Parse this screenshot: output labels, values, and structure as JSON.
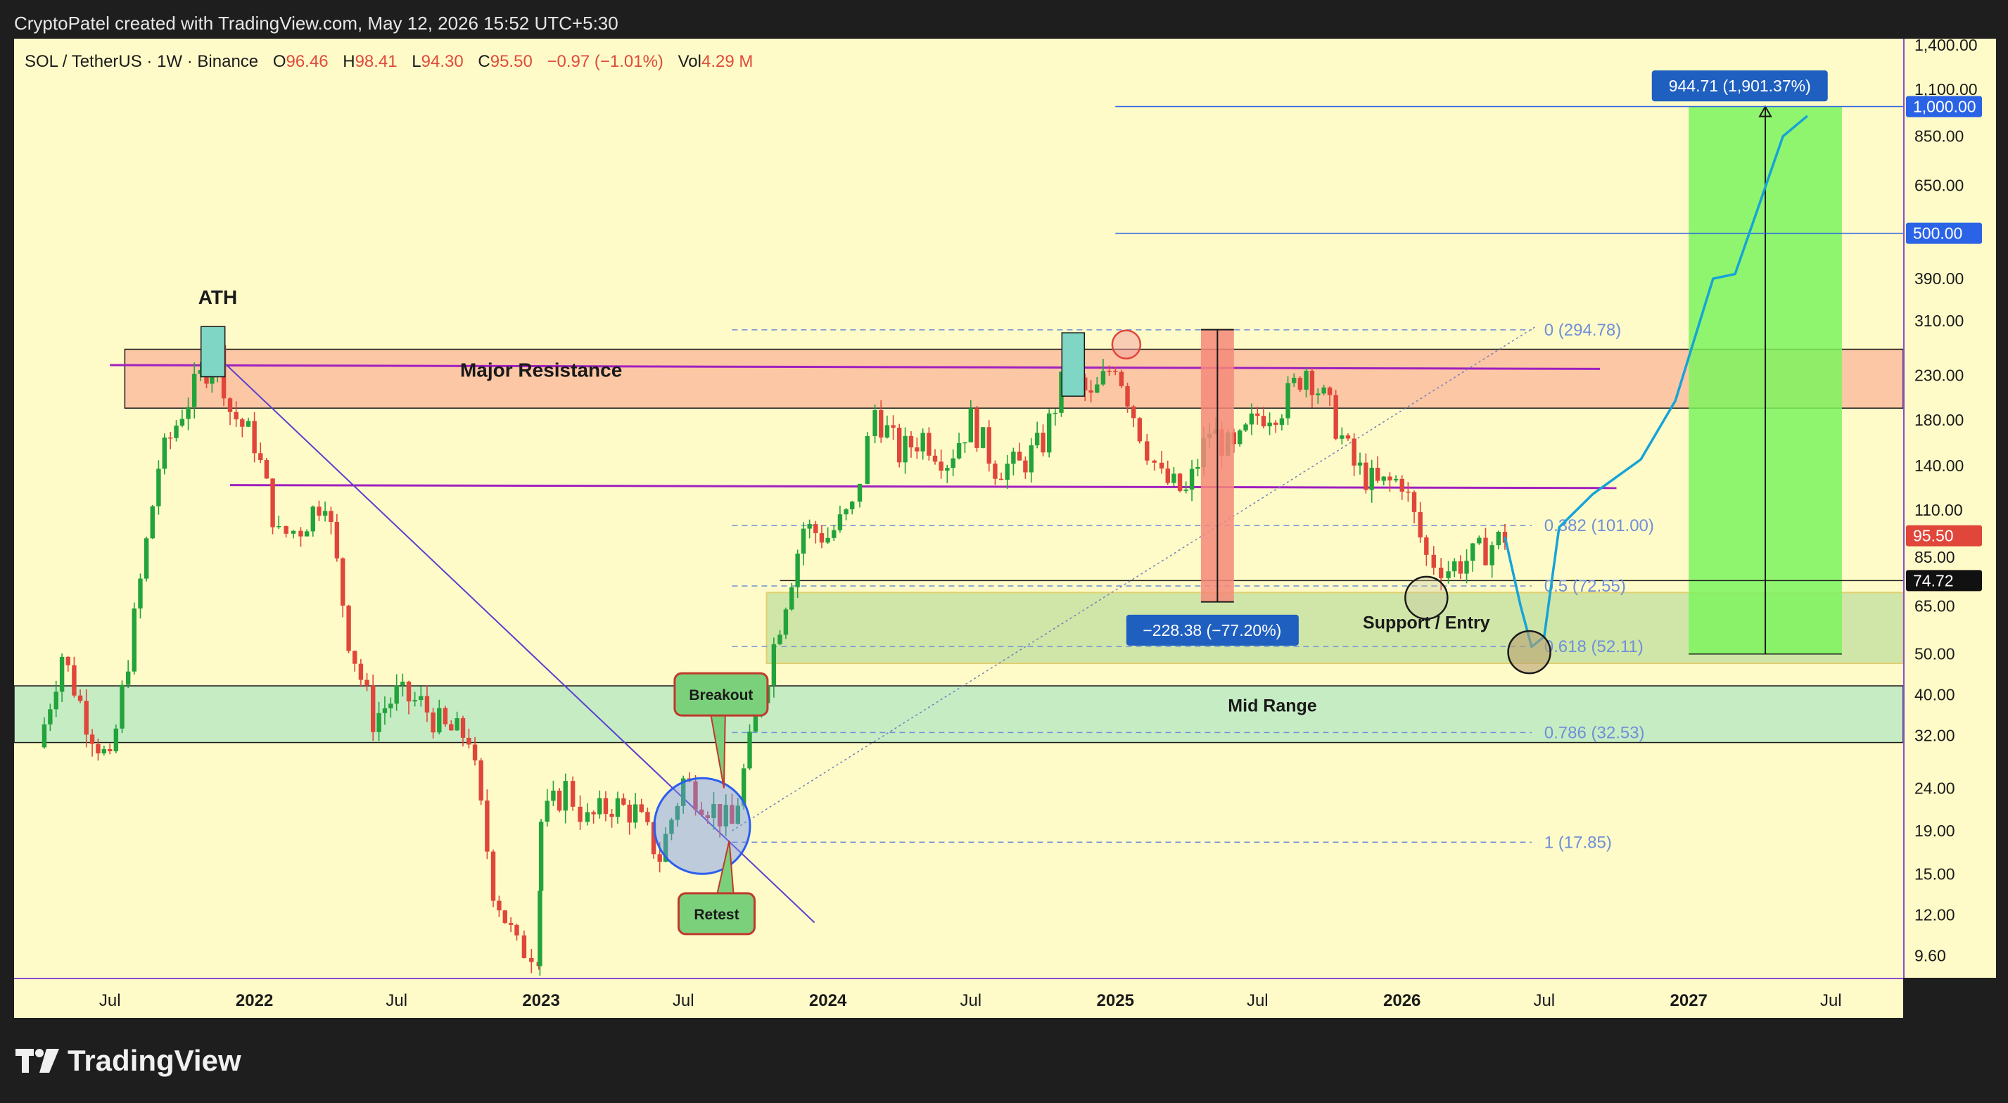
{
  "header": {
    "text": "CryptoPatel created with TradingView.com, May 12, 2026 15:52 UTC+5:30"
  },
  "legend": {
    "symbol": "SOL / TetherUS · 1W · Binance",
    "open_label": "O",
    "open": "96.46",
    "high_label": "H",
    "high": "98.41",
    "low_label": "L",
    "low": "94.30",
    "close_label": "C",
    "close": "95.50",
    "change": "−0.97 (−1.01%)",
    "vol_label": "Vol",
    "vol": "4.29 M"
  },
  "brand": {
    "name": "TradingView",
    "icon": "tradingview-logo-icon"
  },
  "colors": {
    "background": "#fffbc8",
    "up": "#22a33b",
    "down": "#e0463a",
    "projection": "#16a3d8",
    "resistance_line": "#a020c0",
    "fib": "#6f8fd8"
  },
  "chart_data": {
    "type": "candlestick",
    "title": "",
    "scale": "log",
    "ylim": [
      8.5,
      1450
    ],
    "y_ticks": [
      "1,400.00",
      "1,100.00",
      "850.00",
      "650.00",
      "500.00",
      "390.00",
      "310.00",
      "230.00",
      "180.00",
      "140.00",
      "110.00",
      "85.00",
      "65.00",
      "50.00",
      "40.00",
      "32.00",
      "24.00",
      "19.00",
      "15.00",
      "12.00",
      "9.60"
    ],
    "x_ticks": [
      "Jul",
      "2022",
      "Jul",
      "2023",
      "Jul",
      "2024",
      "Jul",
      "2025",
      "Jul",
      "2026",
      "Jul",
      "2027",
      "Jul"
    ],
    "price_badges": [
      {
        "label": "1,000.00",
        "value": 1000,
        "color": "#2b63e6"
      },
      {
        "label": "500.00",
        "value": 500,
        "color": "#2b63e6"
      },
      {
        "label": "95.50",
        "value": 95.5,
        "color": "#e0463a"
      },
      {
        "label": "74.72",
        "value": 74.72,
        "color": "#111111"
      }
    ],
    "weekly_path": [
      [
        "2021-04",
        30
      ],
      [
        "2021-05",
        50
      ],
      [
        "2021-06",
        35
      ],
      [
        "2021-07",
        27
      ],
      [
        "2021-08",
        60
      ],
      [
        "2021-09",
        140
      ],
      [
        "2021-10",
        190
      ],
      [
        "2021-11",
        240
      ],
      [
        "2021-11-15",
        260
      ],
      [
        "2021-12",
        190
      ],
      [
        "2022-01",
        160
      ],
      [
        "2022-02",
        95
      ],
      [
        "2022-03",
        100
      ],
      [
        "2022-04",
        120
      ],
      [
        "2022-05",
        55
      ],
      [
        "2022-06",
        35
      ],
      [
        "2022-07",
        40
      ],
      [
        "2022-08",
        38
      ],
      [
        "2022-09",
        33
      ],
      [
        "2022-10",
        32
      ],
      [
        "2022-11",
        14
      ],
      [
        "2022-12",
        10
      ],
      [
        "2022-12-29",
        9.9
      ],
      [
        "2023-01",
        20
      ],
      [
        "2023-02",
        24
      ],
      [
        "2023-03",
        20
      ],
      [
        "2023-04",
        22
      ],
      [
        "2023-05",
        21
      ],
      [
        "2023-06",
        16.5
      ],
      [
        "2023-07",
        25
      ],
      [
        "2023-08",
        22
      ],
      [
        "2023-09",
        19.5
      ],
      [
        "2023-10",
        35
      ],
      [
        "2023-11",
        60
      ],
      [
        "2023-12",
        100
      ],
      [
        "2024-01",
        95
      ],
      [
        "2024-02",
        110
      ],
      [
        "2024-03",
        190
      ],
      [
        "2024-04",
        150
      ],
      [
        "2024-05",
        165
      ],
      [
        "2024-06",
        145
      ],
      [
        "2024-07",
        180
      ],
      [
        "2024-08",
        140
      ],
      [
        "2024-09",
        140
      ],
      [
        "2024-10",
        160
      ],
      [
        "2024-11",
        240
      ],
      [
        "2024-12",
        200
      ],
      [
        "2025-01",
        250
      ],
      [
        "2025-02",
        170
      ],
      [
        "2025-03",
        130
      ],
      [
        "2025-04",
        120
      ],
      [
        "2025-05",
        170
      ],
      [
        "2025-06",
        150
      ],
      [
        "2025-07",
        185
      ],
      [
        "2025-08",
        195
      ],
      [
        "2025-09",
        240
      ],
      [
        "2025-10",
        190
      ],
      [
        "2025-11",
        140
      ],
      [
        "2025-12",
        125
      ],
      [
        "2026-01",
        130
      ],
      [
        "2026-02",
        85
      ],
      [
        "2026-03",
        80
      ],
      [
        "2026-04",
        85
      ],
      [
        "2026-05-12",
        95.5
      ]
    ],
    "projection_path": [
      [
        "2026-05-12",
        95
      ],
      [
        "2026-06-01",
        65
      ],
      [
        "2026-06-15",
        52
      ],
      [
        "2026-07-01",
        55
      ],
      [
        "2026-07-20",
        100
      ],
      [
        "2026-09-01",
        120
      ],
      [
        "2026-11-01",
        145
      ],
      [
        "2026-12-15",
        200
      ],
      [
        "2027-02-01",
        390
      ],
      [
        "2027-03-01",
        400
      ],
      [
        "2027-05-01",
        850
      ],
      [
        "2027-06-01",
        950
      ]
    ],
    "fibonacci": [
      {
        "label": "0 (294.78)",
        "value": 294.78
      },
      {
        "label": "0.382 (101.00)",
        "value": 101
      },
      {
        "label": "0.5 (72.55)",
        "value": 72.55
      },
      {
        "label": "0.618 (52.11)",
        "value": 52.11
      },
      {
        "label": "0.786 (32.53)",
        "value": 32.53
      },
      {
        "label": "1 (17.85)",
        "value": 17.85
      }
    ],
    "levels": [
      {
        "value": 1000
      },
      {
        "value": 500
      },
      {
        "value": 74.72
      }
    ],
    "zones": [
      {
        "name": "Major Resistance",
        "low": 192,
        "high": 265
      },
      {
        "name": "Mid Range",
        "low": 30.8,
        "high": 42
      },
      {
        "name": "",
        "low": 47.5,
        "high": 70
      }
    ],
    "annotations": {
      "ath": "ATH",
      "major_resistance": "Major Resistance",
      "mid_range": "Mid Range",
      "support_entry": "Support / Entry",
      "breakout": "Breakout",
      "retest": "Retest",
      "drawdown": "−228.38 (−77.20%)",
      "target": "944.71 (1,901.37%)"
    }
  }
}
